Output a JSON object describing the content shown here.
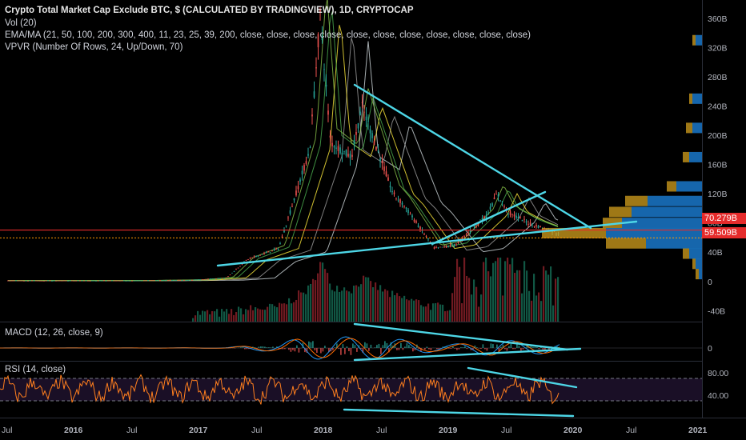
{
  "header": {
    "title": "Crypto Total Market Cap Exclude BTC, $ (CALCULATED BY TRADINGVIEW), 1D, CRYPTOCAP",
    "indicators": [
      "Vol (20)",
      "EMA/MA (21, 50, 100, 200, 300, 400, 11, 23, 25, 39, 200, close, close, close, close, close, close, close, close, close, close, close)",
      "VPVR (Number Of Rows, 24, Up/Down, 70)"
    ]
  },
  "panes": {
    "macd_label": "MACD (12, 26, close, 9)",
    "rsi_label": "RSI (14, close)"
  },
  "price_badges": {
    "upper": "70.279B",
    "lower": "59.509B"
  },
  "colors": {
    "background": "#000000",
    "trendline": "#4dd6e6",
    "upper_hline": "#e52b2b",
    "lower_hline": "#ff9800",
    "badge_red": "#e52b2b",
    "badge_orange": "#ff9800",
    "rsi_line": "#ff7f1e",
    "rsi_band": "#1a0f26",
    "vol_up": "#1f9e7c",
    "vol_down": "#cc2f3c",
    "vpvr_up": "#1e88e5",
    "vpvr_down": "#d4a01e"
  },
  "chart_data": [
    {
      "type": "line",
      "pane": "price",
      "title": "Crypto Total Market Cap Exclude BTC",
      "y_ticks": [
        "360B",
        "320B",
        "280B",
        "240B",
        "200B",
        "160B",
        "120B",
        "80B",
        "40B",
        "0",
        "-40B"
      ],
      "x_ticks": [
        "Jul",
        "2016",
        "Jul",
        "2017",
        "Jul",
        "2018",
        "Jul",
        "2019",
        "Jul",
        "2020",
        "Jul",
        "2021"
      ],
      "ylim": [
        -55,
        385
      ],
      "x": [
        "2015-07",
        "2016-01",
        "2016-07",
        "2017-01",
        "2017-04",
        "2017-06",
        "2017-09",
        "2017-12",
        "2018-01",
        "2018-02",
        "2018-04",
        "2018-05",
        "2018-08",
        "2018-09",
        "2018-12",
        "2019-02",
        "2019-05",
        "2019-06",
        "2019-07",
        "2019-09",
        "2019-11",
        "2019-12"
      ],
      "y": [
        1,
        1,
        1,
        2,
        5,
        30,
        45,
        180,
        365,
        190,
        170,
        240,
        120,
        105,
        45,
        50,
        90,
        120,
        95,
        80,
        70,
        65
      ],
      "horizontal_lines": [
        70.279,
        59.509
      ]
    },
    {
      "type": "bar",
      "pane": "volume",
      "title": "Vol (20)"
    },
    {
      "type": "line",
      "pane": "macd",
      "title": "MACD (12, 26, close, 9)",
      "y_ticks": [
        "0"
      ]
    },
    {
      "type": "line",
      "pane": "rsi",
      "title": "RSI (14, close)",
      "y_ticks": [
        "80.00",
        "40.00"
      ],
      "ylim": [
        0,
        100
      ],
      "band": [
        30,
        70
      ]
    }
  ]
}
